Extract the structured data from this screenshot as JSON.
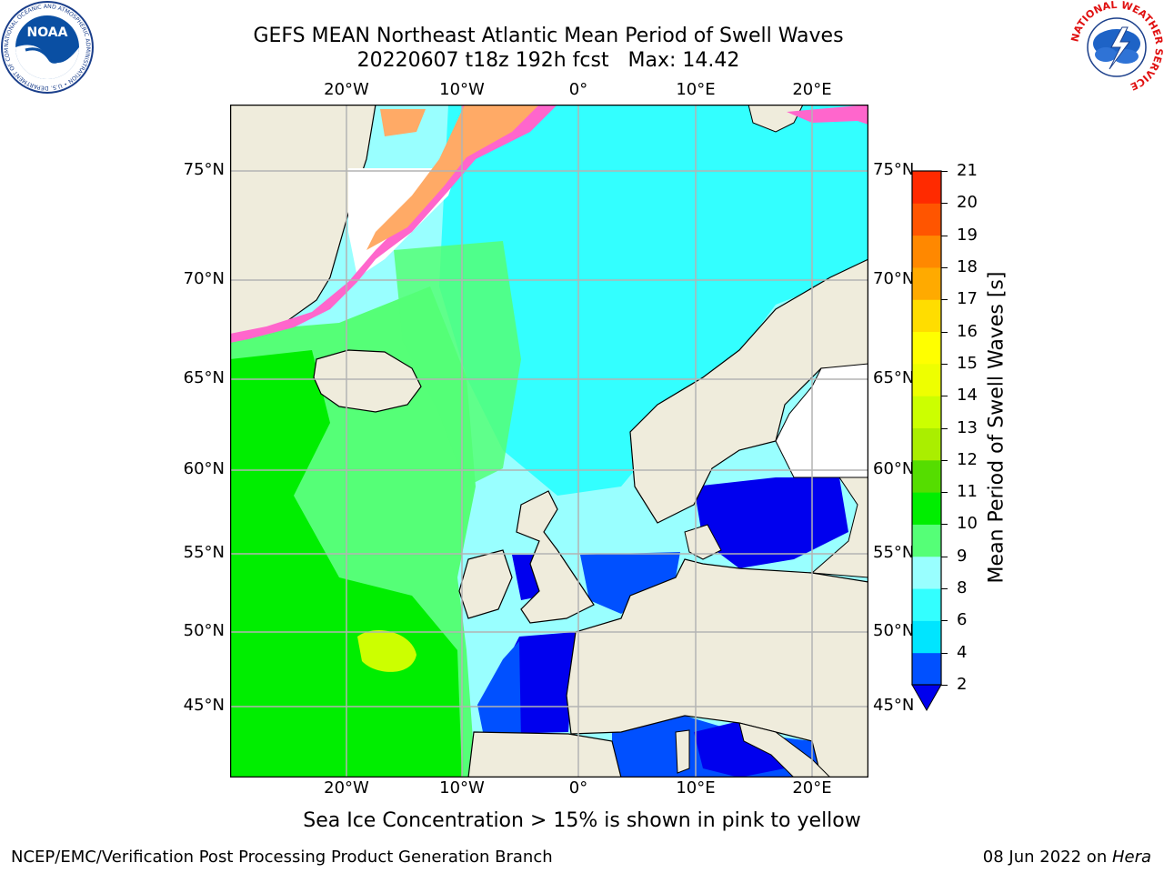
{
  "header": {
    "title_line1": "GEFS MEAN Northeast Atlantic Mean Period of Swell Waves",
    "title_line2": "20220607 t18z 192h fcst   Max: 14.42"
  },
  "logos": {
    "noaa": {
      "wordmark": "NOAA",
      "ring_text": "NATIONAL OCEANIC AND ATMOSPHERIC ADMINISTRATION • U.S. DEPARTMENT OF COMMERCE"
    },
    "nws": {
      "ring_text": "NATIONAL WEATHER SERVICE"
    }
  },
  "map": {
    "lon_labels": [
      "20°W",
      "10°W",
      "0°",
      "10°E",
      "20°E"
    ],
    "lat_labels": [
      "75°N",
      "70°N",
      "65°N",
      "60°N",
      "55°N",
      "50°N",
      "45°N"
    ],
    "colors": {
      "land": "#efecdc",
      "ice": "#ffffff",
      "grid": "#b3b3b3"
    }
  },
  "colorbar": {
    "title": "Mean Period of Swell Waves [s]",
    "ticks": [
      "2",
      "4",
      "6",
      "8",
      "9",
      "10",
      "11",
      "12",
      "13",
      "14",
      "15",
      "16",
      "17",
      "18",
      "19",
      "20",
      "21"
    ],
    "colors": [
      "#0050ff",
      "#00e5ff",
      "#33ffff",
      "#99ffff",
      "#55ff77",
      "#00ee00",
      "#55dd00",
      "#aaee00",
      "#ccff00",
      "#eeff00",
      "#ffff00",
      "#ffdd00",
      "#ffaa00",
      "#ff8800",
      "#ff5500",
      "#ff2a00",
      "#ff0000"
    ],
    "under_color": "#0000ee"
  },
  "note": "Sea Ice Concentration > 15% is shown in pink to yellow",
  "footer": {
    "left": "NCEP/EMC/Verification Post Processing Product Generation Branch",
    "date": "08 Jun 2022 on ",
    "host": "Hera"
  }
}
